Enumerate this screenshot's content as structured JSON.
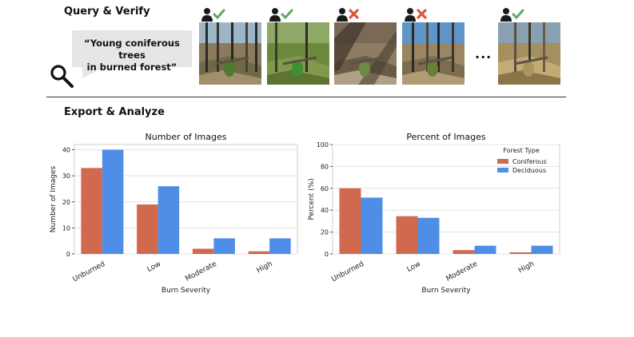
{
  "query": {
    "section_title": "Query & Verify",
    "query_text_line1": "“Young coniferous trees",
    "query_text_line2": "in burned forest”",
    "ellipsis": "...",
    "images": [
      {
        "verified": true,
        "verdict_icon": "check-icon",
        "scene": "burned-forest-sapling"
      },
      {
        "verified": true,
        "verdict_icon": "check-icon",
        "scene": "green-seedling-burned"
      },
      {
        "verified": false,
        "verdict_icon": "cross-icon",
        "scene": "shadowed-slope"
      },
      {
        "verified": false,
        "verdict_icon": "cross-icon",
        "scene": "burned-snags"
      },
      {
        "verified": true,
        "verdict_icon": "check-icon",
        "scene": "burned-trunks-grass"
      }
    ],
    "colors": {
      "check": "#5aa86a",
      "cross": "#d9553b",
      "person": "#1a1a1a",
      "bubble": "#e6e6e6"
    }
  },
  "export": {
    "section_title": "Export & Analyze"
  },
  "chart_data": [
    {
      "type": "bar",
      "title": "Number of Images",
      "xlabel": "Burn Severity",
      "ylabel": "Number of Images",
      "categories": [
        "Unburned",
        "Low",
        "Moderate",
        "High"
      ],
      "ylim": [
        0,
        42
      ],
      "yticks": [
        "0",
        "10",
        "20",
        "30",
        "40"
      ],
      "ytick_values": [
        0,
        10,
        20,
        30,
        40
      ],
      "grid": true,
      "series": [
        {
          "values": [
            33,
            19,
            2,
            1
          ],
          "color": "#d0694d"
        },
        {
          "values": [
            40,
            26,
            6,
            6
          ],
          "color": "#4f8ee6"
        }
      ]
    },
    {
      "type": "bar",
      "title": "Percent of Images",
      "xlabel": "Burn Severity",
      "ylabel": "Percent (%)",
      "categories": [
        "Unburned",
        "Low",
        "Moderate",
        "High"
      ],
      "ylim": [
        0,
        100
      ],
      "yticks": [
        "0",
        "20",
        "40",
        "60",
        "80",
        "100"
      ],
      "ytick_values": [
        0,
        20,
        40,
        60,
        80,
        100
      ],
      "grid": true,
      "legend": {
        "title": "Forest Type",
        "placement": "top-right"
      },
      "series": [
        {
          "name": "Coniferous",
          "values": [
            60,
            34.5,
            3.5,
            1.5
          ],
          "color": "#d0694d"
        },
        {
          "name": "Deciduous",
          "values": [
            51.5,
            33,
            7.5,
            7.5
          ],
          "color": "#4f8ee6"
        }
      ]
    }
  ]
}
